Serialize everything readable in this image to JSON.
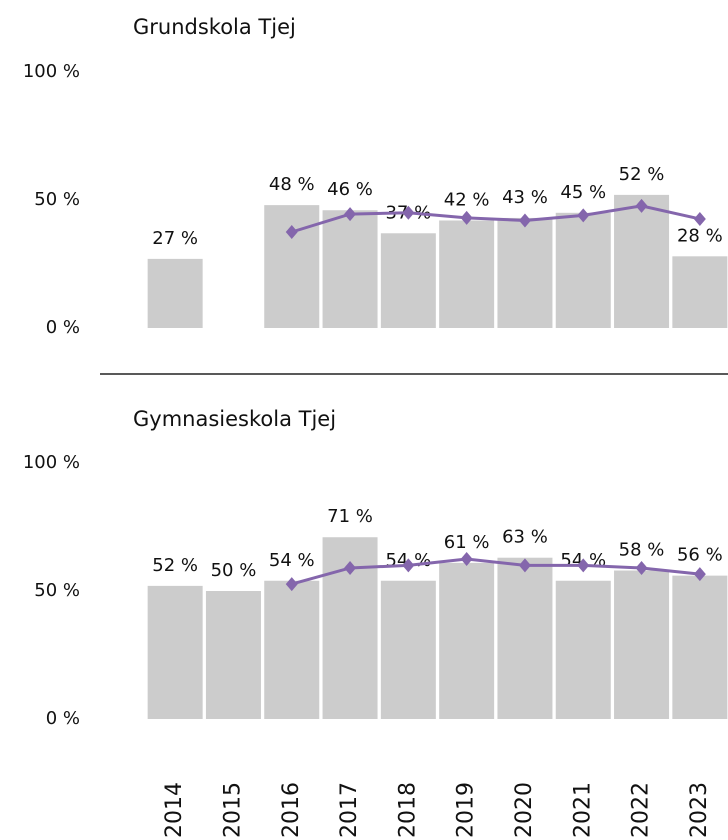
{
  "chart_data": [
    {
      "type": "bar",
      "title": "Grundskola Tjej",
      "ylim": [
        0,
        100
      ],
      "yticks": [
        {
          "value": 0,
          "label": "0 %"
        },
        {
          "value": 50,
          "label": "50 %"
        },
        {
          "value": 100,
          "label": "100 %"
        }
      ],
      "series": [
        {
          "color": "#cccccc",
          "values": [
            27,
            null,
            48,
            46,
            37,
            42,
            43,
            45,
            52,
            28
          ],
          "value_labels": [
            "27 %",
            null,
            "48 %",
            "46 %",
            "37 %",
            "42 %",
            "43 %",
            "45 %",
            "52 %",
            "28 %"
          ]
        },
        {
          "type": "line",
          "color": "#8466ac",
          "values": [
            null,
            null,
            37.5,
            44.5,
            45,
            43,
            42,
            44,
            47.7,
            42.6
          ]
        }
      ]
    },
    {
      "type": "bar",
      "title": "Gymnasieskola Tjej",
      "categories": [
        "2014",
        "2015",
        "2016",
        "2017",
        "2018",
        "2019",
        "2020",
        "2021",
        "2022",
        "2023"
      ],
      "ylim": [
        0,
        100
      ],
      "yticks": [
        {
          "value": 0,
          "label": "0 %"
        },
        {
          "value": 50,
          "label": "50 %"
        },
        {
          "value": 100,
          "label": "100 %"
        }
      ],
      "series": [
        {
          "color": "#cccccc",
          "values": [
            52,
            50,
            54,
            71,
            54,
            61,
            63,
            54,
            58,
            56
          ],
          "value_labels": [
            "52 %",
            "50 %",
            "54 %",
            "71 %",
            "54 %",
            "61 %",
            "63 %",
            "54 %",
            "58 %",
            "56 %"
          ]
        },
        {
          "type": "line",
          "color": "#8466ac",
          "values": [
            null,
            null,
            52.7,
            59,
            60,
            62.5,
            60,
            60,
            59,
            56.6
          ]
        }
      ]
    }
  ]
}
